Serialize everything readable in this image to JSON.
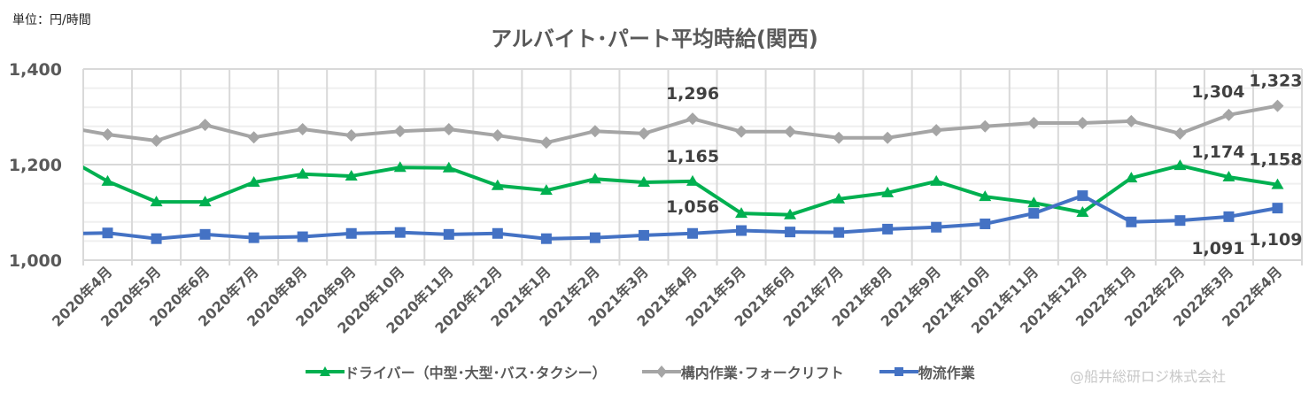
{
  "unit_label": "単位：円/時間",
  "credit": "@船井総研ロジ株式会社",
  "chart_data": {
    "type": "line",
    "title": "アルバイト･パート平均時給(関西)",
    "ylim": [
      1000,
      1400
    ],
    "yticks": [
      1000,
      1200,
      1400
    ],
    "ytick_labels": [
      "1,000",
      "1,200",
      "1,400"
    ],
    "y_minor_step": 40,
    "grid": true,
    "legend_position": "bottom",
    "categories": [
      "2020年4月",
      "2020年5月",
      "2020年6月",
      "2020年7月",
      "2020年8月",
      "2020年9月",
      "2020年10月",
      "2020年11月",
      "2020年12月",
      "2021年1月",
      "2021年2月",
      "2021年3月",
      "2021年4月",
      "2021年5月",
      "2021年6月",
      "2021年7月",
      "2021年8月",
      "2021年9月",
      "2021年10月",
      "2021年11月",
      "2021年12月",
      "2022年1月",
      "2022年2月",
      "2022年3月",
      "2022年4月"
    ],
    "series": [
      {
        "name": "ドライバー（中型･大型･バス･タクシー）",
        "color": "#00b050",
        "marker": "triangle",
        "lead_in": 1223,
        "values": [
          1165,
          1122,
          1122,
          1163,
          1180,
          1176,
          1194,
          1193,
          1156,
          1146,
          1170,
          1163,
          1165,
          1098,
          1095,
          1128,
          1141,
          1165,
          1133,
          1120,
          1100,
          1172,
          1198,
          1174,
          1158
        ],
        "data_labels": [
          {
            "index": 12,
            "text": "1,165"
          },
          {
            "index": 23,
            "text": "1,174"
          },
          {
            "index": 24,
            "text": "1,158"
          }
        ]
      },
      {
        "name": "構内作業･フォークリフト",
        "color": "#a5a5a5",
        "marker": "diamond",
        "lead_in": 1281,
        "values": [
          1263,
          1250,
          1283,
          1257,
          1274,
          1261,
          1270,
          1274,
          1261,
          1246,
          1270,
          1265,
          1296,
          1269,
          1269,
          1256,
          1256,
          1272,
          1280,
          1287,
          1287,
          1291,
          1265,
          1304,
          1323
        ],
        "data_labels": [
          {
            "index": 12,
            "text": "1,296"
          },
          {
            "index": 23,
            "text": "1,304"
          },
          {
            "index": 24,
            "text": "1,323"
          }
        ]
      },
      {
        "name": "物流作業",
        "color": "#4472c4",
        "marker": "square",
        "lead_in": 1055,
        "values": [
          1057,
          1045,
          1054,
          1047,
          1049,
          1056,
          1058,
          1054,
          1056,
          1045,
          1047,
          1052,
          1056,
          1062,
          1059,
          1058,
          1065,
          1069,
          1076,
          1098,
          1135,
          1080,
          1083,
          1091,
          1109
        ],
        "data_labels": [
          {
            "index": 12,
            "text": "1,056"
          },
          {
            "index": 23,
            "text": "1,091"
          },
          {
            "index": 24,
            "text": "1,109"
          }
        ]
      }
    ]
  }
}
